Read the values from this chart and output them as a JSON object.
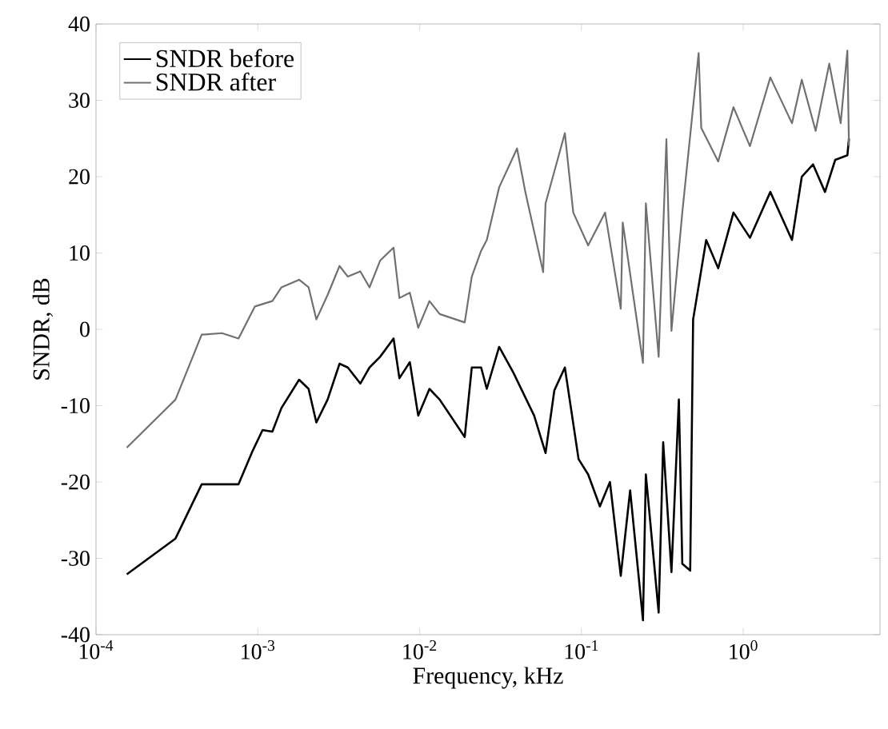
{
  "chart_data": {
    "type": "line",
    "xlabel": "Frequency, kHz",
    "ylabel": "SNDR, dB",
    "log": "x",
    "grid": false,
    "legend": "top left",
    "marker": "none",
    "line_style": "solid",
    "xlim": [
      0.0001,
      7
    ],
    "ylim": [
      -40,
      40
    ],
    "xticks": [
      {
        "value": 0.0001,
        "label": "10$^{-4}$"
      },
      {
        "value": 0.001,
        "label": "10$^{-3}$"
      },
      {
        "value": 0.01,
        "label": "10$^{-2}$"
      },
      {
        "value": 0.1,
        "label": "10$^{-1}$"
      },
      {
        "value": 1,
        "label": "10$^{0}$"
      }
    ],
    "yticks": [
      -40,
      -30,
      -20,
      -10,
      0,
      10,
      20,
      30,
      40
    ],
    "series": [
      {
        "name": "SNDR before",
        "color": "#000000",
        "x": [
          0.000155,
          0.00031,
          0.00045,
          0.00076,
          0.00093,
          0.00107,
          0.00123,
          0.0014,
          0.0018,
          0.00206,
          0.0023,
          0.0027,
          0.0032,
          0.0036,
          0.0043,
          0.0049,
          0.0057,
          0.0069,
          0.0075,
          0.0087,
          0.0098,
          0.0115,
          0.0133,
          0.019,
          0.021,
          0.024,
          0.026,
          0.031,
          0.038,
          0.051,
          0.06,
          0.068,
          0.079,
          0.096,
          0.11,
          0.13,
          0.15,
          0.175,
          0.2,
          0.24,
          0.25,
          0.3,
          0.32,
          0.36,
          0.4,
          0.42,
          0.47,
          0.49,
          0.59,
          0.7,
          0.87,
          1.1,
          1.47,
          2.0,
          2.3,
          2.7,
          3.2,
          3.7,
          4.4,
          4.5
        ],
        "values": [
          -32.1,
          -27.4,
          -20.3,
          -20.3,
          -15.9,
          -13.2,
          -13.4,
          -10.3,
          -6.6,
          -7.8,
          -12.2,
          -9.2,
          -4.5,
          -5,
          -7.1,
          -5,
          -3.6,
          -1.2,
          -6.4,
          -4.3,
          -11.3,
          -7.8,
          -9.2,
          -14.1,
          -5,
          -5,
          -7.8,
          -2.3,
          -5.7,
          -11.3,
          -16.2,
          -8,
          -5,
          -17,
          -19,
          -23.2,
          -20,
          -32.3,
          -21.1,
          -38.1,
          -19,
          -37.1,
          -14.8,
          -31.8,
          -9.2,
          -30.7,
          -31.6,
          1.3,
          11.7,
          8,
          15.3,
          12,
          18,
          11.7,
          20,
          21.6,
          18,
          22.2,
          22.8,
          25
        ]
      },
      {
        "name": "SNDR after",
        "color": "#707070",
        "x": [
          0.000155,
          0.00031,
          0.00045,
          0.0006,
          0.00076,
          0.00096,
          0.00123,
          0.0014,
          0.0018,
          0.00206,
          0.0023,
          0.0027,
          0.0032,
          0.0036,
          0.0043,
          0.0049,
          0.0057,
          0.0069,
          0.0075,
          0.0087,
          0.0098,
          0.0115,
          0.0133,
          0.019,
          0.021,
          0.024,
          0.026,
          0.031,
          0.04,
          0.045,
          0.058,
          0.06,
          0.079,
          0.089,
          0.11,
          0.14,
          0.175,
          0.18,
          0.24,
          0.25,
          0.3,
          0.335,
          0.36,
          0.42,
          0.53,
          0.55,
          0.7,
          0.87,
          1.1,
          1.47,
          2.0,
          2.3,
          2.8,
          3.4,
          4.0,
          4.4,
          4.5
        ],
        "values": [
          -15.5,
          -9.2,
          -0.7,
          -0.5,
          -1.2,
          3,
          3.7,
          5.5,
          6.5,
          5.5,
          1.3,
          4.5,
          8.3,
          6.9,
          7.6,
          5.5,
          9,
          10.7,
          4.1,
          4.8,
          0.2,
          3.7,
          2,
          0.9,
          6.9,
          10.3,
          11.7,
          18.6,
          23.7,
          18,
          7.5,
          16.5,
          25.7,
          15.3,
          11,
          15.3,
          2.7,
          14,
          -4.4,
          16.5,
          -3.6,
          24.9,
          -0.2,
          15.3,
          36.2,
          26.4,
          22,
          29.1,
          24,
          33,
          27,
          32.7,
          26,
          34.8,
          27,
          36.5,
          24
        ]
      }
    ]
  }
}
